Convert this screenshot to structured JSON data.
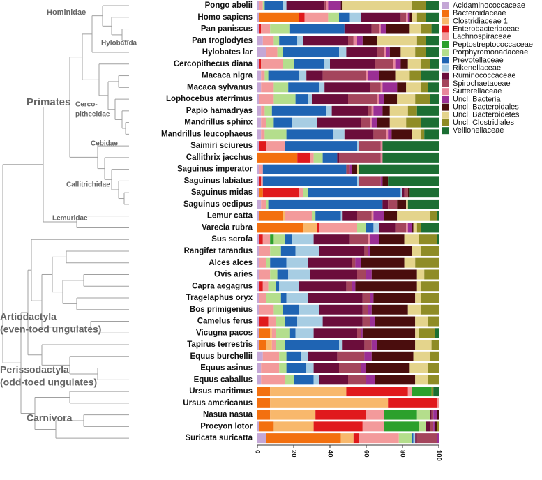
{
  "chart_data": {
    "type": "bar",
    "orientation": "horizontal",
    "stacked": true,
    "categories": [
      "Pongo abelii",
      "Homo sapiens",
      "Pan paniscus",
      "Pan troglodytes",
      "Hylobates lar",
      "Cercopithecus diana",
      "Macaca nigra",
      "Macaca sylvanus",
      "Lophocebus aterrimus",
      "Papio hamadryas",
      "Mandrillus sphinx",
      "Mandrillus leucophaeus",
      "Saimiri sciureus",
      "Callithrix jacchus",
      "Saguinus imperator",
      "Saguinus labiatus",
      "Saguinus midas",
      "Saguinus oedipus",
      "Lemur catta",
      "Varecia rubra",
      "Sus scrofa",
      "Rangifer tarandus",
      "Alces alces",
      "Ovis aries",
      "Capra aegagrus",
      "Tragelaphus oryx",
      "Bos primigenius",
      "Camelus ferus",
      "Vicugna pacos",
      "Tapirus terrestris",
      "Equus burchellii",
      "Equus asinus",
      "Equus caballus",
      "Ursus maritimus",
      "Ursus americanus",
      "Nasua nasua",
      "Procyon lotor",
      "Suricata suricatta"
    ],
    "series": [
      {
        "name": "Acidaminococcaceae",
        "color": "#c4a7d6",
        "values": [
          1,
          1,
          1,
          3,
          5,
          1,
          2,
          2,
          1,
          2,
          2,
          2,
          1,
          0,
          1,
          1,
          1,
          2,
          1,
          0,
          1,
          1,
          1,
          1,
          1,
          1,
          1,
          1,
          1,
          1,
          3,
          2,
          2,
          0,
          0,
          0,
          1,
          5
        ]
      },
      {
        "name": "Bacteroidaceae",
        "color": "#f3700f",
        "values": [
          0,
          22,
          0,
          0,
          0,
          0,
          0,
          0,
          0,
          0,
          0,
          0,
          0,
          22,
          0,
          0,
          2,
          0,
          13,
          25,
          0,
          0,
          0,
          0,
          0,
          0,
          0,
          0,
          6,
          4,
          0,
          0,
          0,
          7,
          7,
          7,
          8,
          41
        ]
      },
      {
        "name": "Clostridiaceae 1",
        "color": "#f8b86c",
        "values": [
          0,
          0,
          0,
          0,
          0,
          0,
          0,
          0,
          0,
          0,
          0,
          0,
          0,
          0,
          0,
          0,
          0,
          0,
          1,
          8,
          0,
          0,
          0,
          0,
          0,
          0,
          0,
          0,
          1,
          3,
          0,
          0,
          0,
          42,
          65,
          25,
          22,
          7
        ]
      },
      {
        "name": "Enterobacteriaceae",
        "color": "#e0191c",
        "values": [
          0,
          3,
          1,
          0,
          0,
          1,
          0,
          0,
          0,
          0,
          0,
          0,
          4,
          7,
          0,
          1,
          20,
          0,
          0,
          1,
          2,
          0,
          0,
          0,
          2,
          0,
          0,
          5,
          0,
          0,
          0,
          0,
          0,
          34,
          27,
          28,
          27,
          3
        ]
      },
      {
        "name": "Lachnospiraceae",
        "color": "#f39a9b",
        "values": [
          2,
          13,
          5,
          6,
          6,
          12,
          2,
          7,
          8,
          2,
          3,
          2,
          10,
          2,
          2,
          1,
          2,
          3,
          15,
          21,
          4,
          6,
          4,
          6,
          3,
          4,
          8,
          4,
          2,
          2,
          9,
          10,
          13,
          2,
          1,
          10,
          12,
          22
        ]
      },
      {
        "name": "Peptostreptococcaceae",
        "color": "#2ca02c",
        "values": [
          0,
          0,
          0,
          0,
          0,
          0,
          0,
          0,
          0,
          0,
          0,
          0,
          0,
          0,
          0,
          0,
          0,
          0,
          0,
          0,
          2,
          0,
          0,
          0,
          0,
          0,
          0,
          0,
          0,
          0,
          0,
          0,
          0,
          11,
          0,
          18,
          19,
          0
        ]
      },
      {
        "name": "Porphyromonadaceae",
        "color": "#b4de8c",
        "values": [
          1,
          6,
          11,
          3,
          3,
          6,
          2,
          8,
          12,
          4,
          4,
          12,
          0,
          5,
          0,
          0,
          3,
          1,
          2,
          5,
          6,
          6,
          2,
          4,
          4,
          8,
          5,
          5,
          8,
          5,
          4,
          4,
          5,
          0,
          0,
          7,
          4,
          7
        ]
      },
      {
        "name": "Prevotellaceae",
        "color": "#1f64b3",
        "values": [
          10,
          6,
          30,
          10,
          31,
          17,
          17,
          17,
          7,
          30,
          10,
          26,
          40,
          8,
          46,
          52,
          51,
          63,
          14,
          4,
          4,
          8,
          9,
          6,
          2,
          3,
          9,
          7,
          3,
          30,
          8,
          11,
          11,
          0,
          0,
          0,
          0,
          1
        ]
      },
      {
        "name": "Rikenellaceae",
        "color": "#a7cde3",
        "values": [
          2,
          6,
          0,
          3,
          4,
          3,
          4,
          3,
          2,
          3,
          14,
          6,
          1,
          0,
          0,
          1,
          1,
          0,
          1,
          3,
          12,
          13,
          12,
          12,
          11,
          12,
          11,
          14,
          10,
          2,
          4,
          4,
          3,
          0,
          0,
          0,
          0,
          1
        ]
      },
      {
        "name": "Ruminococcaceae",
        "color": "#6b0d3b",
        "values": [
          21,
          22,
          15,
          25,
          17,
          25,
          9,
          25,
          20,
          20,
          24,
          16,
          0,
          1,
          0,
          0,
          1,
          3,
          8,
          9,
          20,
          25,
          24,
          26,
          26,
          30,
          24,
          22,
          24,
          12,
          16,
          14,
          16,
          0,
          0,
          1,
          2,
          1
        ]
      },
      {
        "name": "Spirochaetaceae",
        "color": "#a4455c",
        "values": [
          1,
          3,
          4,
          3,
          4,
          10,
          24,
          6,
          16,
          2,
          5,
          7,
          12,
          23,
          2,
          12,
          2,
          5,
          8,
          6,
          10,
          2,
          2,
          5,
          3,
          4,
          3,
          4,
          2,
          4,
          15,
          12,
          10,
          0,
          0,
          1,
          2,
          11
        ]
      },
      {
        "name": "Sutterellaceae",
        "color": "#e7879c",
        "values": [
          1,
          1,
          1,
          2,
          1,
          1,
          1,
          1,
          1,
          1,
          1,
          1,
          1,
          1,
          0,
          0,
          0,
          0,
          1,
          1,
          1,
          0,
          0,
          0,
          0,
          0,
          0,
          0,
          0,
          0,
          0,
          0,
          0,
          0,
          0,
          0,
          0,
          0
        ]
      },
      {
        "name": "Uncl. Bacteria",
        "color": "#9a2f95",
        "values": [
          7,
          1,
          3,
          3,
          2,
          3,
          6,
          8,
          3,
          5,
          3,
          2,
          0,
          0,
          1,
          1,
          0,
          0,
          6,
          2,
          5,
          1,
          3,
          3,
          2,
          2,
          2,
          3,
          1,
          3,
          4,
          3,
          5,
          0,
          0,
          2,
          1,
          1
        ]
      },
      {
        "name": "Uncl. Bacteroidales",
        "color": "#4a0d0d",
        "values": [
          1,
          1,
          13,
          8,
          6,
          4,
          9,
          5,
          7,
          4,
          7,
          11,
          0,
          0,
          3,
          3,
          1,
          5,
          7,
          1,
          14,
          23,
          24,
          25,
          34,
          23,
          20,
          22,
          29,
          21,
          23,
          24,
          22,
          0,
          0,
          1,
          1,
          0
        ]
      },
      {
        "name": "Uncl. Bacteroidetes",
        "color": "#e4d48c",
        "values": [
          38,
          3,
          6,
          22,
          8,
          7,
          8,
          8,
          10,
          10,
          9,
          5,
          0,
          0,
          1,
          0,
          0,
          1,
          18,
          2,
          8,
          5,
          6,
          4,
          2,
          3,
          7,
          7,
          2,
          9,
          9,
          10,
          7,
          0,
          0,
          0,
          0,
          0
        ]
      },
      {
        "name": "Uncl. Clostridiales",
        "color": "#8f8c26",
        "values": [
          8,
          5,
          6,
          5,
          6,
          5,
          6,
          4,
          8,
          5,
          8,
          2,
          0,
          0,
          0,
          0,
          0,
          0,
          4,
          2,
          10,
          10,
          13,
          8,
          10,
          10,
          10,
          6,
          9,
          4,
          5,
          6,
          6,
          1,
          0,
          0,
          1,
          0
        ]
      },
      {
        "name": "Veillonellaceae",
        "color": "#1c6e33",
        "values": [
          7,
          7,
          4,
          7,
          7,
          5,
          10,
          6,
          5,
          12,
          10,
          8,
          31,
          31,
          44,
          28,
          16,
          17,
          1,
          10,
          1,
          0,
          0,
          0,
          0,
          0,
          0,
          0,
          2,
          0,
          0,
          0,
          0,
          3,
          0,
          0,
          0,
          0
        ]
      }
    ],
    "xlim": [
      0,
      100
    ],
    "xticks": [
      0,
      20,
      40,
      60,
      80,
      100
    ]
  },
  "tree": {
    "clades": [
      [
        "Hominidae"
      ],
      [
        "Hylobatida"
      ],
      [
        "Cerco-",
        "pithecidae"
      ],
      [
        "Primates"
      ],
      [
        "Cebidae"
      ],
      [
        "Callitrichidae"
      ],
      [
        "Lemuridae"
      ],
      [
        "Artiodactyla",
        "(even-toed ungulates)"
      ],
      [
        "Perissodactyla",
        "(odd-toed ungulates)"
      ],
      [
        "Carnivora"
      ]
    ]
  }
}
